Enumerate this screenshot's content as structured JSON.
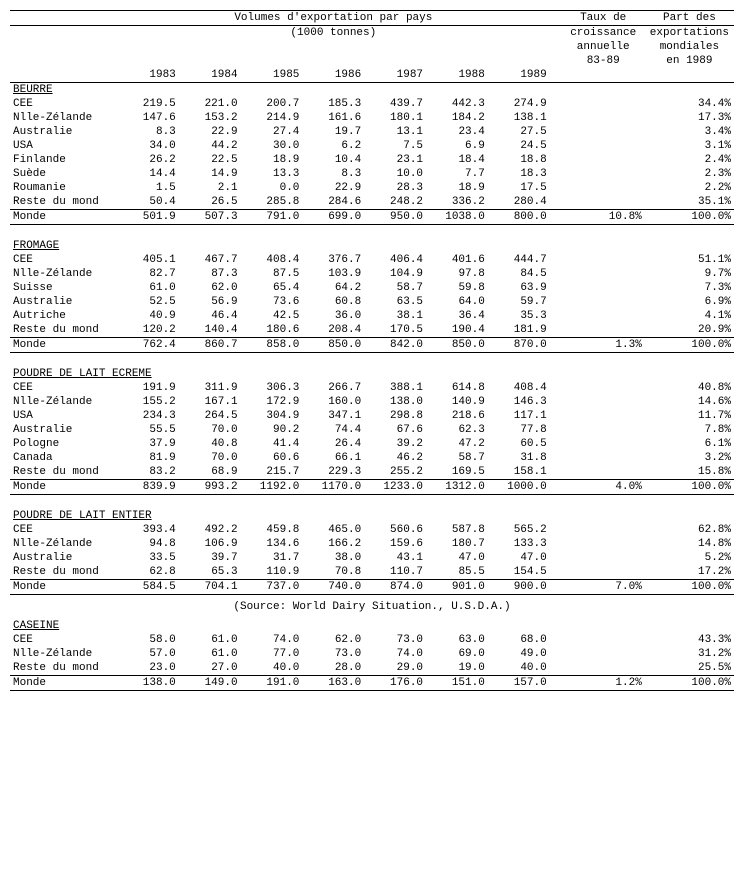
{
  "headers": {
    "volumes_title": "Volumes d'exportation par pays",
    "volumes_sub": "(1000 tonnes)",
    "growth_l1": "Taux de",
    "growth_l2": "croissance",
    "growth_l3": "annuelle",
    "growth_l4": "83-89",
    "share_l1": "Part des",
    "share_l2": "exportations",
    "share_l3": "mondiales",
    "share_l4": "en 1989",
    "y1983": "1983",
    "y1984": "1984",
    "y1985": "1985",
    "y1986": "1986",
    "y1987": "1987",
    "y1988": "1988",
    "y1989": "1989"
  },
  "sections": [
    {
      "title": "BEURRE",
      "rows": [
        [
          "CEE",
          "219.5",
          "221.0",
          "200.7",
          "185.3",
          "439.7",
          "442.3",
          "274.9",
          "",
          "34.4%"
        ],
        [
          "Nlle-Zélande",
          "147.6",
          "153.2",
          "214.9",
          "161.6",
          "180.1",
          "184.2",
          "138.1",
          "",
          "17.3%"
        ],
        [
          "Australie",
          "8.3",
          "22.9",
          "27.4",
          "19.7",
          "13.1",
          "23.4",
          "27.5",
          "",
          "3.4%"
        ],
        [
          "USA",
          "34.0",
          "44.2",
          "30.0",
          "6.2",
          "7.5",
          "6.9",
          "24.5",
          "",
          "3.1%"
        ],
        [
          "Finlande",
          "26.2",
          "22.5",
          "18.9",
          "10.4",
          "23.1",
          "18.4",
          "18.8",
          "",
          "2.4%"
        ],
        [
          "Suède",
          "14.4",
          "14.9",
          "13.3",
          "8.3",
          "10.0",
          "7.7",
          "18.3",
          "",
          "2.3%"
        ],
        [
          "Roumanie",
          "1.5",
          "2.1",
          "0.0",
          "22.9",
          "28.3",
          "18.9",
          "17.5",
          "",
          "2.2%"
        ],
        [
          "Reste du mond",
          "50.4",
          "26.5",
          "285.8",
          "284.6",
          "248.2",
          "336.2",
          "280.4",
          "",
          "35.1%"
        ]
      ],
      "total": [
        "Monde",
        "501.9",
        "507.3",
        "791.0",
        "699.0",
        "950.0",
        "1038.0",
        "800.0",
        "10.8%",
        "100.0%"
      ]
    },
    {
      "title": "FROMAGE",
      "rows": [
        [
          "CEE",
          "405.1",
          "467.7",
          "408.4",
          "376.7",
          "406.4",
          "401.6",
          "444.7",
          "",
          "51.1%"
        ],
        [
          "Nlle-Zélande",
          "82.7",
          "87.3",
          "87.5",
          "103.9",
          "104.9",
          "97.8",
          "84.5",
          "",
          "9.7%"
        ],
        [
          "Suisse",
          "61.0",
          "62.0",
          "65.4",
          "64.2",
          "58.7",
          "59.8",
          "63.9",
          "",
          "7.3%"
        ],
        [
          "Australie",
          "52.5",
          "56.9",
          "73.6",
          "60.8",
          "63.5",
          "64.0",
          "59.7",
          "",
          "6.9%"
        ],
        [
          "Autriche",
          "40.9",
          "46.4",
          "42.5",
          "36.0",
          "38.1",
          "36.4",
          "35.3",
          "",
          "4.1%"
        ],
        [
          "Reste du mond",
          "120.2",
          "140.4",
          "180.6",
          "208.4",
          "170.5",
          "190.4",
          "181.9",
          "",
          "20.9%"
        ]
      ],
      "total": [
        "Monde",
        "762.4",
        "860.7",
        "858.0",
        "850.0",
        "842.0",
        "850.0",
        "870.0",
        "1.3%",
        "100.0%"
      ]
    },
    {
      "title": "POUDRE DE LAIT ECREME",
      "rows": [
        [
          "CEE",
          "191.9",
          "311.9",
          "306.3",
          "266.7",
          "388.1",
          "614.8",
          "408.4",
          "",
          "40.8%"
        ],
        [
          "Nlle-Zélande",
          "155.2",
          "167.1",
          "172.9",
          "160.0",
          "138.0",
          "140.9",
          "146.3",
          "",
          "14.6%"
        ],
        [
          "USA",
          "234.3",
          "264.5",
          "304.9",
          "347.1",
          "298.8",
          "218.6",
          "117.1",
          "",
          "11.7%"
        ],
        [
          "Australie",
          "55.5",
          "70.0",
          "90.2",
          "74.4",
          "67.6",
          "62.3",
          "77.8",
          "",
          "7.8%"
        ],
        [
          "Pologne",
          "37.9",
          "40.8",
          "41.4",
          "26.4",
          "39.2",
          "47.2",
          "60.5",
          "",
          "6.1%"
        ],
        [
          "Canada",
          "81.9",
          "70.0",
          "60.6",
          "66.1",
          "46.2",
          "58.7",
          "31.8",
          "",
          "3.2%"
        ],
        [
          "Reste du mond",
          "83.2",
          "68.9",
          "215.7",
          "229.3",
          "255.2",
          "169.5",
          "158.1",
          "",
          "15.8%"
        ]
      ],
      "total": [
        "Monde",
        "839.9",
        "993.2",
        "1192.0",
        "1170.0",
        "1233.0",
        "1312.0",
        "1000.0",
        "4.0%",
        "100.0%"
      ]
    },
    {
      "title": "POUDRE DE LAIT ENTIER",
      "rows": [
        [
          "CEE",
          "393.4",
          "492.2",
          "459.8",
          "465.0",
          "560.6",
          "587.8",
          "565.2",
          "",
          "62.8%"
        ],
        [
          "Nlle-Zélande",
          "94.8",
          "106.9",
          "134.6",
          "166.2",
          "159.6",
          "180.7",
          "133.3",
          "",
          "14.8%"
        ],
        [
          "Australie",
          "33.5",
          "39.7",
          "31.7",
          "38.0",
          "43.1",
          "47.0",
          "47.0",
          "",
          "5.2%"
        ],
        [
          "Reste du mond",
          "62.8",
          "65.3",
          "110.9",
          "70.8",
          "110.7",
          "85.5",
          "154.5",
          "",
          "17.2%"
        ]
      ],
      "total": [
        "Monde",
        "584.5",
        "704.1",
        "737.0",
        "740.0",
        "874.0",
        "901.0",
        "900.0",
        "7.0%",
        "100.0%"
      ]
    },
    {
      "title": "CASEINE",
      "source_before": "(Source: World Dairy Situation., U.S.D.A.)",
      "rows": [
        [
          "CEE",
          "58.0",
          "61.0",
          "74.0",
          "62.0",
          "73.0",
          "63.0",
          "68.0",
          "",
          "43.3%"
        ],
        [
          "Nlle-Zélande",
          "57.0",
          "61.0",
          "77.0",
          "73.0",
          "74.0",
          "69.0",
          "49.0",
          "",
          "31.2%"
        ],
        [
          "Reste du mond",
          "23.0",
          "27.0",
          "40.0",
          "28.0",
          "29.0",
          "19.0",
          "40.0",
          "",
          "25.5%"
        ]
      ],
      "total": [
        "Monde",
        "138.0",
        "149.0",
        "191.0",
        "163.0",
        "176.0",
        "151.0",
        "157.0",
        "1.2%",
        "100.0%"
      ]
    }
  ]
}
